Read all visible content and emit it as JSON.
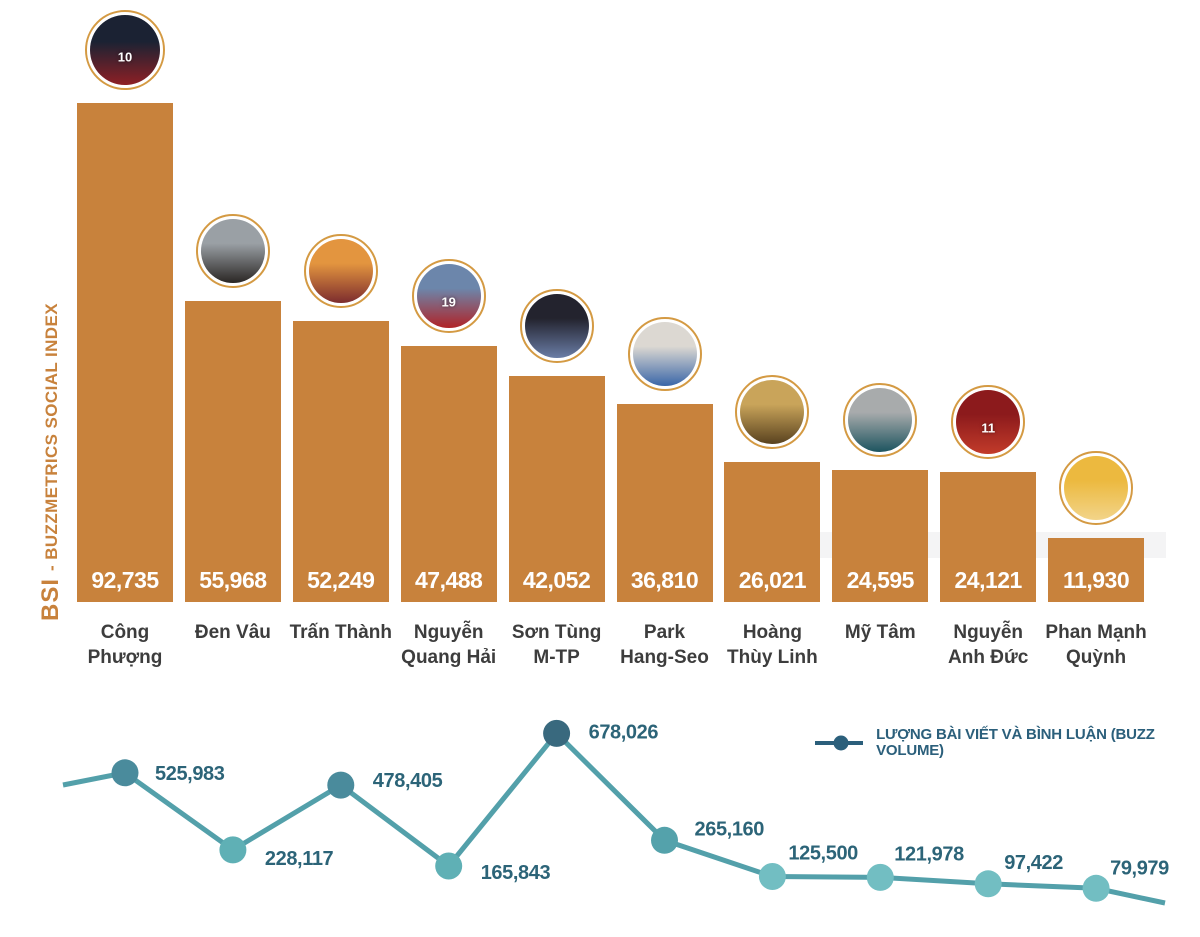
{
  "colors": {
    "bar": "#c8823c",
    "axis_label": "#c8823c",
    "bar_value_text": "#ffffff",
    "category_text": "#3d3d3d",
    "line": "#53a0aa",
    "point_label_text": "#2c6478",
    "legend": "#2b5f7b",
    "avatar_ring": "#d49a43"
  },
  "chart_data": [
    {
      "type": "bar",
      "title": "BSI - BUZZMETRICS SOCIAL INDEX",
      "axis_label_prefix": "BSI",
      "axis_label_rest": "- BUZZMETRICS SOCIAL INDEX",
      "categories": [
        "Công Phượng",
        "Đen Vâu",
        "Trấn Thành",
        "Nguyễn Quang Hải",
        "Sơn Tùng M-TP",
        "Park Hang-Seo",
        "Hoàng Thùy Linh",
        "Mỹ Tâm",
        "Nguyễn Anh Đức",
        "Phan Mạnh Quỳnh"
      ],
      "category_display_lines": [
        [
          "Công",
          "Phượng"
        ],
        [
          "Đen Vâu"
        ],
        [
          "Trấn Thành"
        ],
        [
          "Nguyễn",
          "Quang Hải"
        ],
        [
          "Sơn Tùng",
          "M-TP"
        ],
        [
          "Park",
          "Hang-Seo"
        ],
        [
          "Hoàng",
          "Thùy Linh"
        ],
        [
          "Mỹ Tâm"
        ],
        [
          "Nguyễn",
          "Anh Đức"
        ],
        [
          "Phan Mạnh",
          "Quỳnh"
        ]
      ],
      "values": [
        92735,
        55968,
        52249,
        47488,
        42052,
        36810,
        26021,
        24595,
        24121,
        11930
      ],
      "value_labels": [
        "92,735",
        "55,968",
        "52,249",
        "47,488",
        "42,052",
        "36,810",
        "26,021",
        "24,595",
        "24,121",
        "11,930"
      ],
      "ylim": [
        0,
        93000
      ],
      "grid": false,
      "bar_color": "#c8823c",
      "value_label_position": "inside-bottom"
    },
    {
      "type": "line",
      "legend_label": "LƯỢNG BÀI VIẾT VÀ BÌNH LUẬN (BUZZ VOLUME)",
      "legend_position": "top-right",
      "categories": [
        "Công Phượng",
        "Đen Vâu",
        "Trấn Thành",
        "Nguyễn Quang Hải",
        "Sơn Tùng M-TP",
        "Park Hang-Seo",
        "Hoàng Thùy Linh",
        "Mỹ Tâm",
        "Nguyễn Anh Đức",
        "Phan Mạnh Quỳnh"
      ],
      "values": [
        525983,
        228117,
        478405,
        165843,
        678026,
        265160,
        125500,
        121978,
        97422,
        79979
      ],
      "value_labels": [
        "525,983",
        "228,117",
        "478,405",
        "165,843",
        "678,026",
        "265,160",
        "125,500",
        "121,978",
        "97,422",
        "79,979"
      ],
      "point_colors": [
        "#4a8b9c",
        "#5fb0b5",
        "#4a8b9c",
        "#5fb0b5",
        "#39697e",
        "#54a2ab",
        "#72bec2",
        "#72bec2",
        "#72bec2",
        "#72bec2"
      ],
      "line_color": "#53a0aa",
      "ylim": [
        0,
        700000
      ],
      "grid": false
    }
  ],
  "avatars": [
    {
      "person": "Công Phượng",
      "photo": "cong-phuong-red-jersey-10",
      "colors": [
        "#1b2233",
        "#8e2025"
      ],
      "jersey_number": "10"
    },
    {
      "person": "Đen Vâu",
      "photo": "den-vau-portrait",
      "colors": [
        "#9aa0a5",
        "#2a2624"
      ],
      "jersey_number": ""
    },
    {
      "person": "Trấn Thành",
      "photo": "tran-thanh-maroon-suit",
      "colors": [
        "#e3953f",
        "#7c2c2e"
      ],
      "jersey_number": ""
    },
    {
      "person": "Nguyễn Quang Hải",
      "photo": "quang-hai-red-jersey-19",
      "colors": [
        "#6c86ab",
        "#b02327"
      ],
      "jersey_number": "19"
    },
    {
      "person": "Sơn Tùng M-TP",
      "photo": "son-tung-portrait",
      "colors": [
        "#23232e",
        "#6a7da6"
      ],
      "jersey_number": ""
    },
    {
      "person": "Park Hang-Seo",
      "photo": "park-hang-seo-portrait",
      "colors": [
        "#dcd8d2",
        "#3a66a8"
      ],
      "jersey_number": ""
    },
    {
      "person": "Hoàng Thùy Linh",
      "photo": "hoang-thuy-linh-poster",
      "colors": [
        "#c9a45a",
        "#59421f"
      ],
      "jersey_number": ""
    },
    {
      "person": "Mỹ Tâm",
      "photo": "my-tam-portrait",
      "colors": [
        "#a8abac",
        "#1d545f"
      ],
      "jersey_number": ""
    },
    {
      "person": "Nguyễn Anh Đức",
      "photo": "anh-duc-red-jersey-11",
      "colors": [
        "#8c1a1c",
        "#c23b2a"
      ],
      "jersey_number": "11"
    },
    {
      "person": "Phan Mạnh Quỳnh",
      "photo": "phan-manh-quynh-yellow-flowers",
      "colors": [
        "#ecb93f",
        "#f2d489"
      ],
      "jersey_number": ""
    }
  ]
}
